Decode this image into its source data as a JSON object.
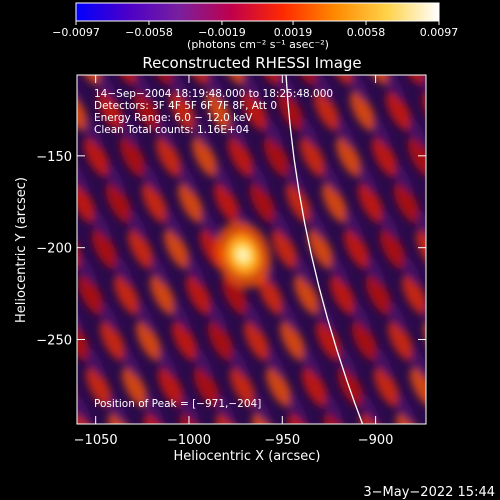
{
  "chart_data": {
    "type": "heatmap",
    "title": "Reconstructed RHESSI Image",
    "xlabel": "Heliocentric X (arcsec)",
    "ylabel": "Heliocentric Y (arcsec)",
    "xlim": [
      -1060,
      -873
    ],
    "ylim": [
      -296,
      -106
    ],
    "x_ticks": [
      -1050,
      -1000,
      -950,
      -900
    ],
    "x_tick_labels": [
      "−1050",
      "−1000",
      "−950",
      "−900"
    ],
    "y_ticks": [
      -250,
      -200,
      -150
    ],
    "y_tick_labels": [
      "−250",
      "−200",
      "−150"
    ],
    "colorbar": {
      "range": [
        -0.0097,
        0.0097
      ],
      "ticks": [
        -0.0097,
        -0.0058,
        -0.0019,
        0.0019,
        0.0058,
        0.0097
      ],
      "tick_labels": [
        "−0.0097",
        "−0.0058",
        "−0.0019",
        "0.0019",
        "0.0058",
        "0.0097"
      ],
      "unit_label": "(photons cm⁻² s⁻¹ asec⁻²)",
      "colors": [
        "#0000ff",
        "#4b00c8",
        "#7a1f9e",
        "#c0004a",
        "#ff2a00",
        "#ff8a00",
        "#ffd24a",
        "#ffffff"
      ]
    },
    "peak": {
      "x": -971,
      "y": -204
    },
    "limb_x_at_top": -948,
    "limb_x_at_bottom": -907,
    "annotations": [
      "14−Sep−2004 18:19:48.000 to 18:25:48.000",
      "Detectors: 3F 4F 5F 6F 7F 8F, Att 0",
      "Energy Range: 6.0 − 12.0 keV",
      "Clean     Total counts: 1.16E+04",
      "Position of Peak = [−971,−204]"
    ]
  },
  "footer_timestamp": "3−May−2022 15:44"
}
